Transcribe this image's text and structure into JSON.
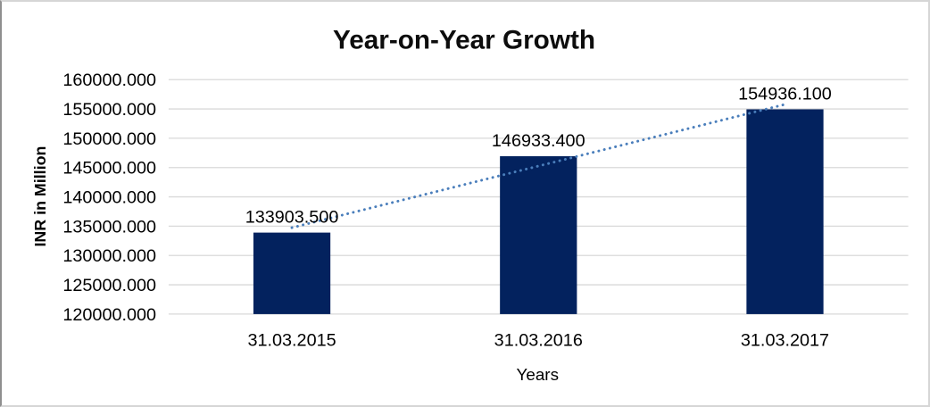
{
  "chart_data": {
    "type": "bar",
    "title": "Year-on-Year Growth",
    "xlabel": "Years",
    "ylabel": "INR in Million",
    "categories": [
      "31.03.2015",
      "31.03.2016",
      "31.03.2017"
    ],
    "values": [
      133903.5,
      146933.4,
      154936.1
    ],
    "bar_value_labels": [
      "133903.500",
      "146933.400",
      "154936.100"
    ],
    "ylim": [
      120000,
      160000
    ],
    "ytick_labels": [
      "160000.000",
      "155000.000",
      "150000.000",
      "145000.000",
      "140000.000",
      "135000.000",
      "130000.000",
      "125000.000",
      "120000.000"
    ],
    "grid": true,
    "legend": "none",
    "trendline": {
      "type": "linear",
      "style": "dotted"
    },
    "colors": {
      "bar": "#03225e",
      "trendline": "#4a7ebb",
      "gridline": "#d9d9d9",
      "text": "#000000",
      "frame_border": "#d6d6d6"
    }
  }
}
